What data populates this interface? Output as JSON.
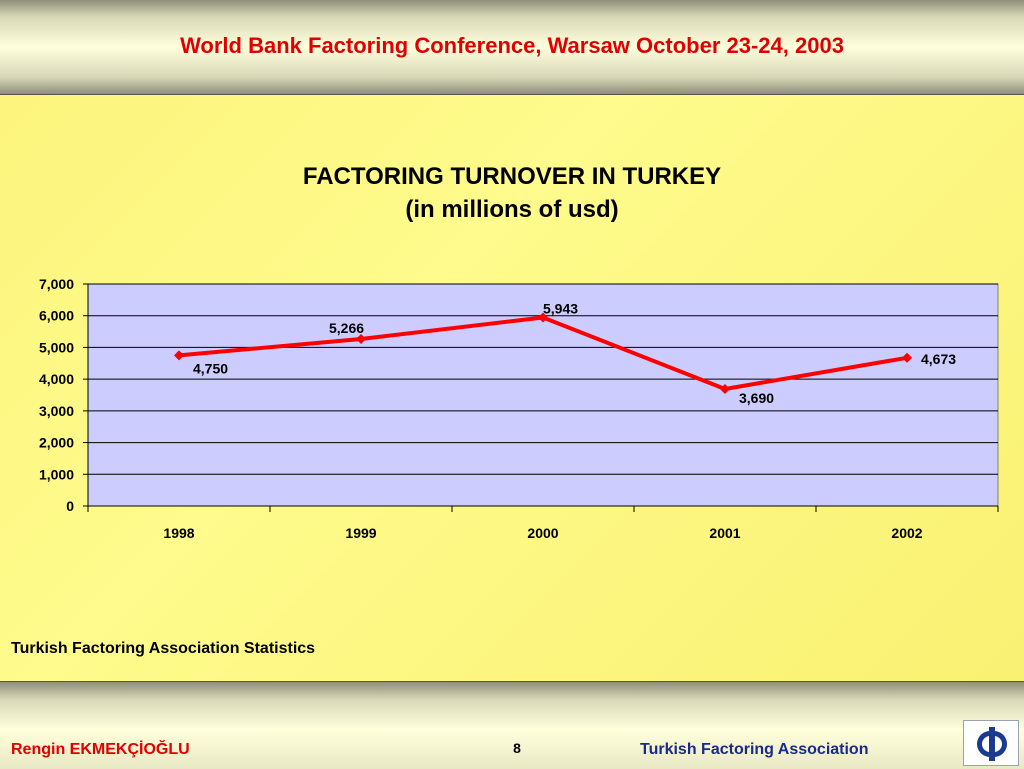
{
  "header": {
    "title": "World Bank Factoring  Conference, Warsaw October 23-24, 2003"
  },
  "chart_title": {
    "line1": "FACTORING TURNOVER IN TURKEY",
    "line2": "(in millions  of usd)"
  },
  "chart_data": {
    "type": "line",
    "title": "FACTORING TURNOVER IN TURKEY (in millions  of usd)",
    "categories": [
      "1998",
      "1999",
      "2000",
      "2001",
      "2002"
    ],
    "series": [
      {
        "values": [
          4750,
          5266,
          5943,
          3690,
          4673
        ]
      }
    ],
    "data_labels": [
      "4,750",
      "5,266",
      "5,943",
      "3,690",
      "4,673"
    ],
    "yticks": [
      "0",
      "1,000",
      "2,000",
      "3,000",
      "4,000",
      "5,000",
      "6,000",
      "7,000"
    ],
    "ylim": [
      0,
      7000
    ],
    "grid": true,
    "legend": "none",
    "colors": {
      "line": "#ff0000",
      "plot_bg": "#ccccff",
      "grid": "#000000"
    }
  },
  "source_note": "Turkish Factoring Association Statistics",
  "footer": {
    "author": "Rengin EKMEKÇİOĞLU",
    "page_number": "8",
    "organization": "Turkish Factoring Association",
    "logo_symbol": "Φ"
  },
  "colors": {
    "title_red": "#e00000",
    "org_blue": "#1a2a8a",
    "background": "#fff98a"
  }
}
